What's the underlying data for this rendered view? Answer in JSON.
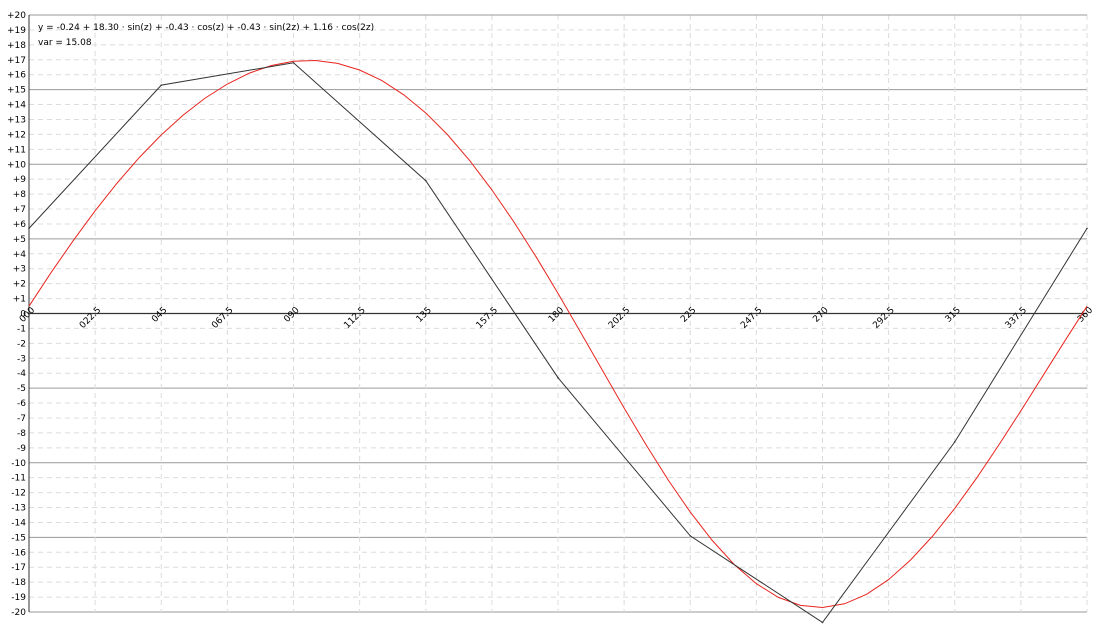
{
  "chart_data": {
    "type": "line",
    "annotations": {
      "equation": "y = -0.24 + 18.30 · sin(z) + -0.43 · cos(z) + -0.43 · sin(2z) + 1.16 · cos(2z)",
      "variance": "var = 15.08"
    },
    "x_tick_labels": [
      "000",
      "022.5",
      "045",
      "067.5",
      "090",
      "112.5",
      "135",
      "157.5",
      "180",
      "202.5",
      "225",
      "247.5",
      "270",
      "292.5",
      "315",
      "337.5",
      "360"
    ],
    "x_ticks": [
      0,
      22.5,
      45,
      67.5,
      90,
      112.5,
      135,
      157.5,
      180,
      202.5,
      225,
      247.5,
      270,
      292.5,
      315,
      337.5,
      360
    ],
    "y_tick_labels": [
      "+20",
      "+19",
      "+18",
      "+17",
      "+16",
      "+15",
      "+14",
      "+13",
      "+12",
      "+11",
      "+10",
      "+9",
      "+8",
      "+7",
      "+6",
      "+5",
      "+4",
      "+3",
      "+2",
      "+1",
      "0",
      "-1",
      "-2",
      "-3",
      "-4",
      "-5",
      "-6",
      "-7",
      "-8",
      "-9",
      "-10",
      "-11",
      "-12",
      "-13",
      "-14",
      "-15",
      "-16",
      "-17",
      "-18",
      "-19",
      "-20"
    ],
    "xlim": [
      0,
      360
    ],
    "ylim": [
      -20,
      20
    ],
    "grid": true,
    "major_gridlines_y": [
      15,
      10,
      5,
      -5,
      -10,
      -15,
      -20
    ],
    "colors": {
      "data_line": "#333333",
      "fit_line": "#e8251f",
      "axis": "#333333",
      "major_grid": "#9a9a9a",
      "minor_grid": "#dcdcdc"
    },
    "series": [
      {
        "values_x": [
          0,
          45,
          90,
          135,
          180,
          225,
          270,
          315,
          360
        ],
        "values_y": [
          5.7,
          15.3,
          16.8,
          8.9,
          -4.3,
          -14.9,
          -20.7,
          -8.6,
          5.7
        ]
      },
      {
        "function": {
          "a0": -0.24,
          "sin1": 18.3,
          "cos1": -0.43,
          "sin2": -0.43,
          "cos2": 1.16
        }
      }
    ]
  }
}
